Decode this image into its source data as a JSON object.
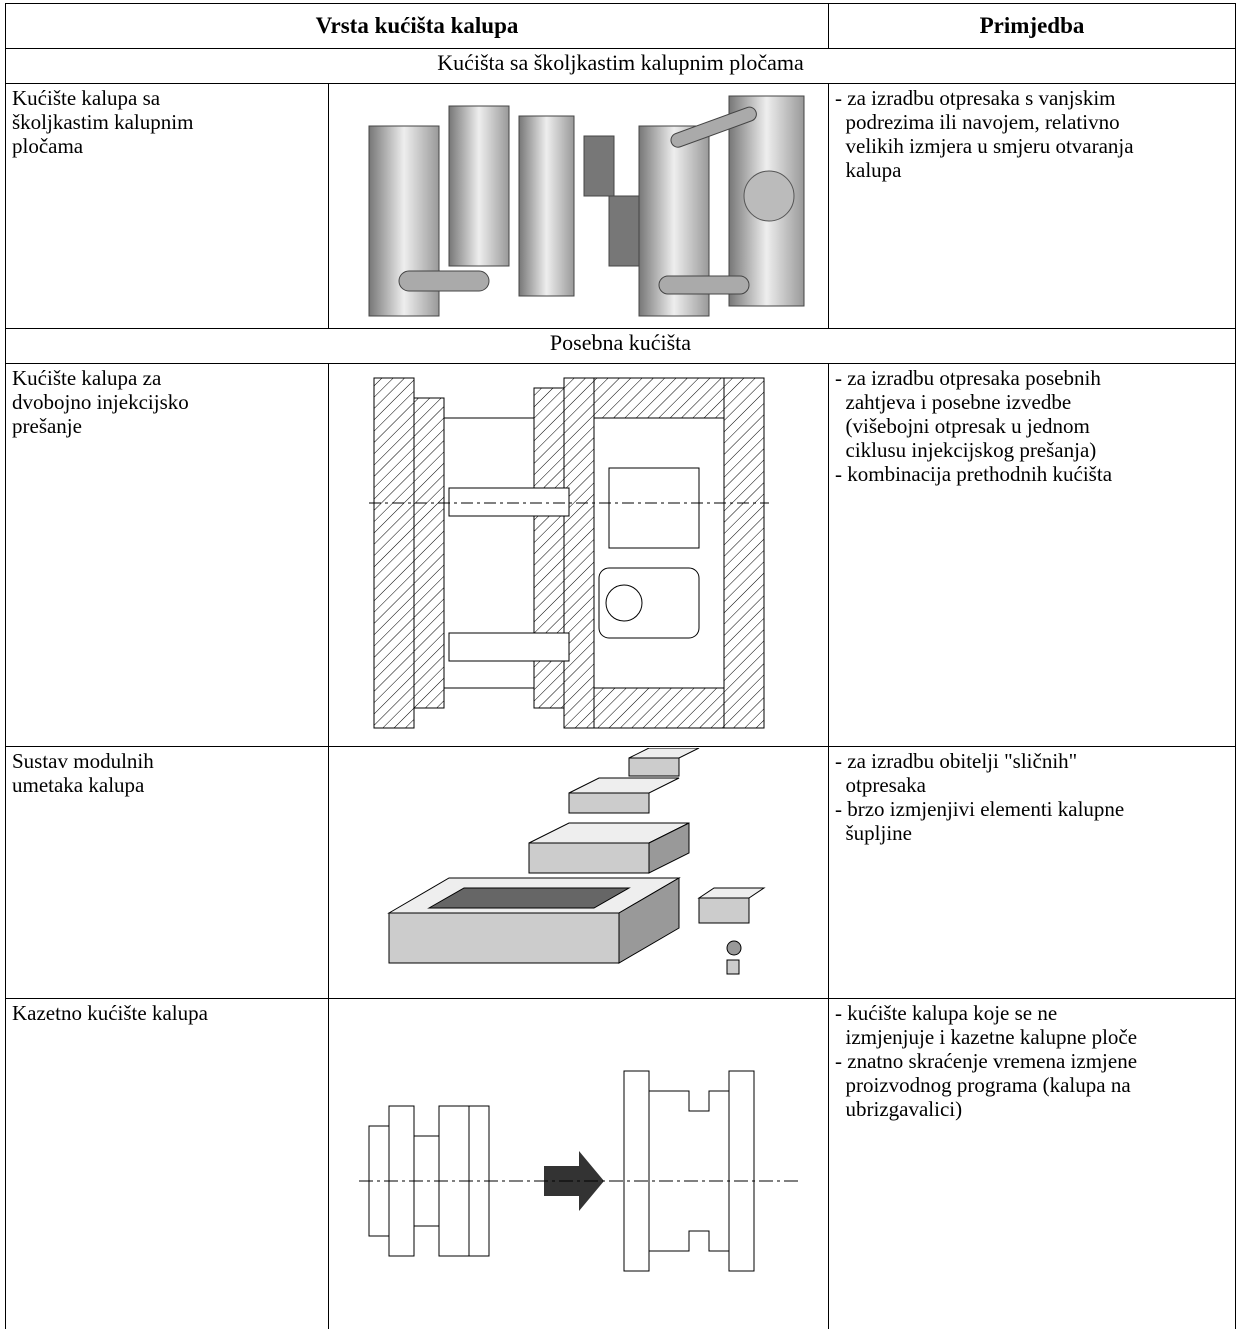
{
  "header": {
    "columns": [
      "Vrsta kućišta kalupa",
      "Primjedba"
    ]
  },
  "sections": [
    {
      "title": "Kućišta sa školjkastim kalupnim pločama",
      "rows": [
        {
          "label": [
            "Kućište kalupa sa",
            "školjkastim kalupnim",
            "pločama"
          ],
          "remarks": [
            "- za izradbu otpresaka s vanjskim",
            "  podrezima ili navojem, relativno",
            "  velikih izmjera u smjeru otvaranja",
            "  kalupa"
          ]
        }
      ]
    },
    {
      "title": "Posebna kućišta",
      "rows": [
        {
          "label": [
            "Kućište kalupa za",
            "dvobojno injekcijsko",
            "prešanje"
          ],
          "remarks": [
            "- za izradbu otpresaka posebnih",
            "  zahtjeva i posebne izvedbe",
            "  (višebojni otpresak u jednom",
            "  ciklusu injekcijskog prešanja)",
            "- kombinacija prethodnih kućišta"
          ]
        },
        {
          "label": [
            "Sustav modulnih",
            "umetaka kalupa"
          ],
          "remarks": [
            "- za izradbu obitelji \"sličnih\"",
            "  otpresaka",
            "- brzo izmjenjivi elementi kalupne",
            "  šupljine"
          ]
        },
        {
          "label": [
            "Kazetno kućište kalupa"
          ],
          "remarks": [
            "- kućište kalupa koje se ne",
            "  izmjenjuje i kazetne kalupne ploče",
            "- znatno skraćenje vremena izmjene",
            "  proizvodnog programa (kalupa na",
            "  ubrizgavalici)"
          ]
        }
      ]
    }
  ]
}
